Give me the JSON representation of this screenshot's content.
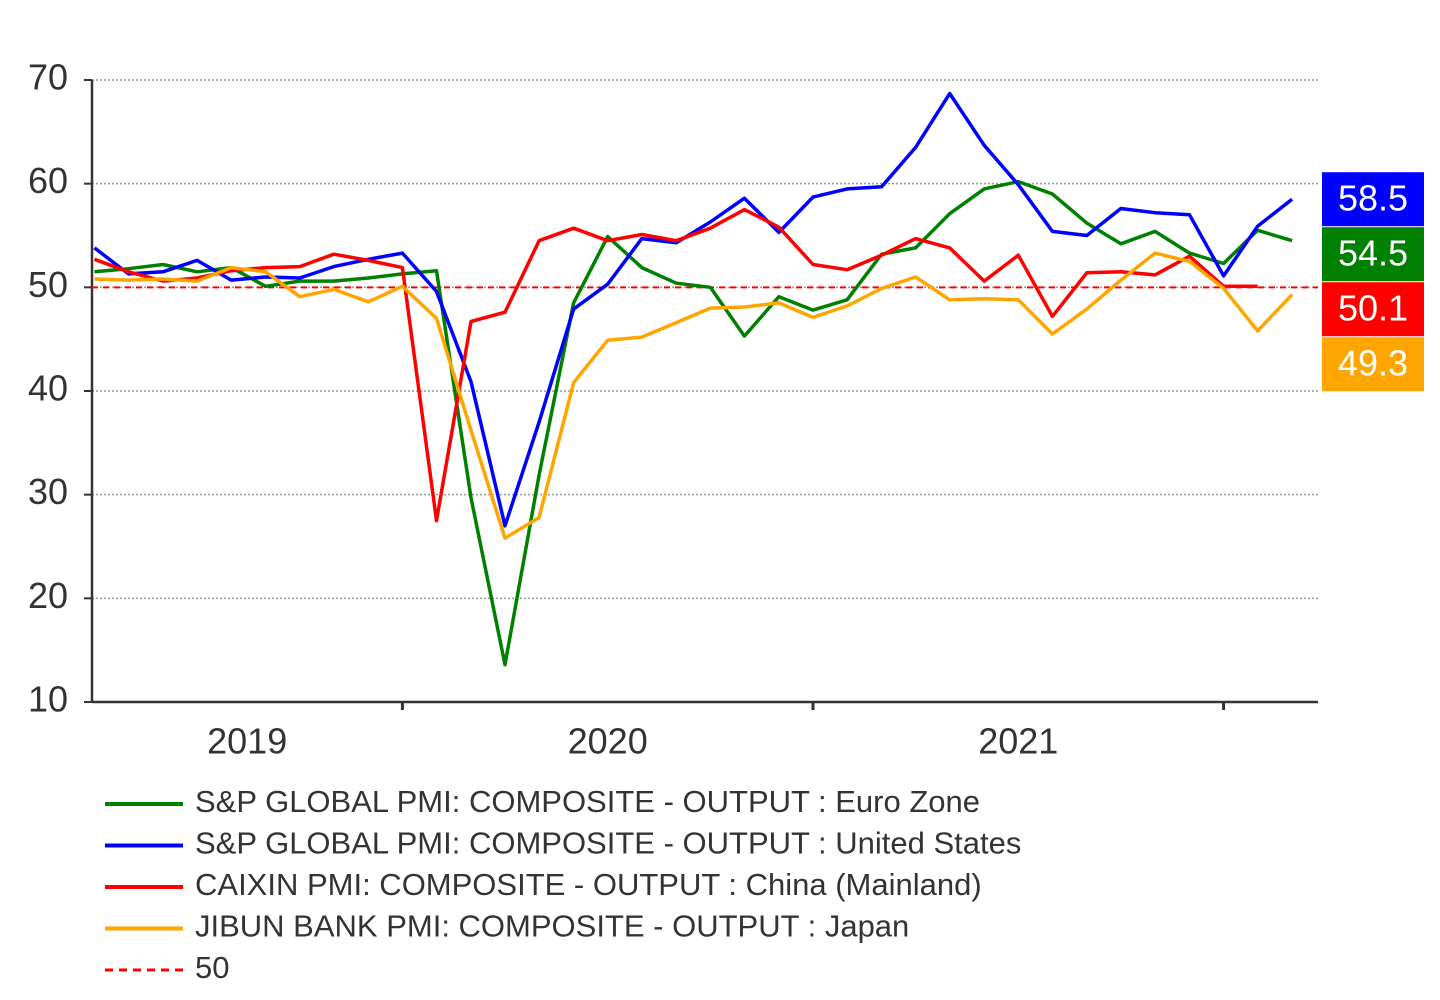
{
  "chart_data": {
    "type": "line",
    "x": [
      2019.25,
      2019.333,
      2019.417,
      2019.5,
      2019.583,
      2019.667,
      2019.75,
      2019.833,
      2019.917,
      2020.0,
      2020.083,
      2020.167,
      2020.25,
      2020.333,
      2020.417,
      2020.5,
      2020.583,
      2020.667,
      2020.75,
      2020.833,
      2020.917,
      2021.0,
      2021.083,
      2021.167,
      2021.25,
      2021.333,
      2021.417,
      2021.5,
      2021.583,
      2021.667,
      2021.75,
      2021.833,
      2021.917,
      2022.0,
      2022.083,
      2022.167
    ],
    "xlim": [
      2019.244,
      2022.23
    ],
    "xticks": [
      2020,
      2021,
      2022
    ],
    "year_labels": [
      {
        "value": 2019,
        "label": "2019"
      },
      {
        "value": 2020,
        "label": "2020"
      },
      {
        "value": 2021,
        "label": "2021"
      }
    ],
    "ylim": [
      10,
      70
    ],
    "yticks": [
      10,
      20,
      30,
      40,
      50,
      60,
      70
    ],
    "grid": true,
    "series": [
      {
        "name": "S&P GLOBAL PMI: COMPOSITE - OUTPUT : Euro Zone",
        "color": "#008000",
        "values": [
          51.5,
          51.8,
          52.2,
          51.5,
          51.9,
          50.1,
          50.6,
          50.6,
          50.9,
          51.3,
          51.6,
          29.7,
          13.6,
          31.9,
          48.5,
          54.9,
          51.9,
          50.4,
          50.0,
          45.3,
          49.1,
          47.8,
          48.8,
          53.2,
          53.8,
          57.1,
          59.5,
          60.2,
          59.0,
          56.2,
          54.2,
          55.4,
          53.3,
          52.3,
          55.5,
          54.5
        ]
      },
      {
        "name": "S&P GLOBAL PMI: COMPOSITE - OUTPUT : United States",
        "color": "#0000ff",
        "values": [
          53.8,
          51.3,
          51.5,
          52.6,
          50.7,
          51.0,
          50.9,
          52.0,
          52.7,
          53.3,
          49.6,
          40.9,
          27.0,
          37.0,
          47.9,
          50.3,
          54.7,
          54.3,
          56.3,
          58.6,
          55.3,
          58.7,
          59.5,
          59.7,
          63.5,
          68.7,
          63.7,
          59.9,
          55.4,
          55.0,
          57.6,
          57.2,
          57.0,
          51.1,
          55.9,
          58.5
        ]
      },
      {
        "name": "CAIXIN PMI: COMPOSITE - OUTPUT : China (Mainland)",
        "color": "#ff0000",
        "values": [
          52.7,
          51.5,
          50.6,
          50.9,
          51.6,
          51.9,
          52.0,
          53.2,
          52.6,
          51.9,
          27.5,
          46.7,
          47.6,
          54.5,
          55.7,
          54.5,
          55.1,
          54.5,
          55.7,
          57.5,
          55.8,
          52.2,
          51.7,
          53.1,
          54.7,
          53.8,
          50.6,
          53.1,
          47.2,
          51.4,
          51.5,
          51.2,
          53.0,
          50.1,
          50.1,
          null
        ]
      },
      {
        "name": "JIBUN BANK PMI: COMPOSITE - OUTPUT : Japan",
        "color": "#ffa500",
        "values": [
          50.8,
          50.7,
          50.8,
          50.6,
          51.9,
          51.5,
          49.1,
          49.8,
          48.6,
          50.1,
          47.0,
          36.2,
          25.8,
          27.8,
          40.8,
          44.9,
          45.2,
          46.6,
          48.0,
          48.1,
          48.5,
          47.1,
          48.2,
          49.9,
          51.0,
          48.8,
          48.9,
          48.8,
          45.5,
          47.9,
          50.7,
          53.3,
          52.5,
          49.9,
          45.8,
          49.3
        ]
      }
    ],
    "reference_line": {
      "name": "50",
      "value": 50,
      "color": "#ff0000"
    }
  }
}
